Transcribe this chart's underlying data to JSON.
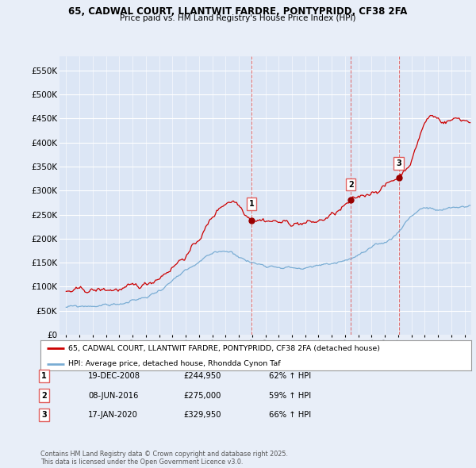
{
  "title": "65, CADWAL COURT, LLANTWIT FARDRE, PONTYPRIDD, CF38 2FA",
  "subtitle": "Price paid vs. HM Land Registry's House Price Index (HPI)",
  "red_line_label": "65, CADWAL COURT, LLANTWIT FARDRE, PONTYPRIDD, CF38 2FA (detached house)",
  "blue_line_label": "HPI: Average price, detached house, Rhondda Cynon Taf",
  "sale_points": [
    {
      "num": 1,
      "date_num": 2008.97,
      "price": 244950,
      "label": "1",
      "date_str": "19-DEC-2008",
      "price_str": "£244,950",
      "hpi_str": "62% ↑ HPI"
    },
    {
      "num": 2,
      "date_num": 2016.44,
      "price": 275000,
      "label": "2",
      "date_str": "08-JUN-2016",
      "price_str": "£275,000",
      "hpi_str": "59% ↑ HPI"
    },
    {
      "num": 3,
      "date_num": 2020.04,
      "price": 329950,
      "label": "3",
      "date_str": "17-JAN-2020",
      "price_str": "£329,950",
      "hpi_str": "66% ↑ HPI"
    }
  ],
  "ylim": [
    0,
    580000
  ],
  "yticks": [
    0,
    50000,
    100000,
    150000,
    200000,
    250000,
    300000,
    350000,
    400000,
    450000,
    500000,
    550000
  ],
  "ytick_labels": [
    "£0",
    "£50K",
    "£100K",
    "£150K",
    "£200K",
    "£250K",
    "£300K",
    "£350K",
    "£400K",
    "£450K",
    "£500K",
    "£550K"
  ],
  "xlim_start": 1994.5,
  "xlim_end": 2025.5,
  "xticks": [
    1995,
    1996,
    1997,
    1998,
    1999,
    2000,
    2001,
    2002,
    2003,
    2004,
    2005,
    2006,
    2007,
    2008,
    2009,
    2010,
    2011,
    2012,
    2013,
    2014,
    2015,
    2016,
    2017,
    2018,
    2019,
    2020,
    2021,
    2022,
    2023,
    2024,
    2025
  ],
  "background_color": "#e8eef8",
  "plot_bg_color": "#dce6f5",
  "red_color": "#cc0000",
  "blue_color": "#7aadd4",
  "vline_color": "#e06060",
  "grid_color": "#ffffff",
  "footer_text": "Contains HM Land Registry data © Crown copyright and database right 2025.\nThis data is licensed under the Open Government Licence v3.0."
}
